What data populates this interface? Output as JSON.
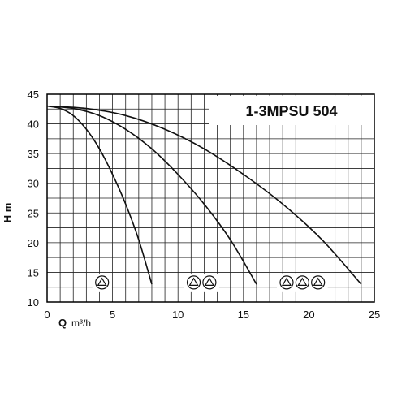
{
  "chart_data": {
    "type": "line",
    "title": "1-3MPSU 504",
    "xlabel": "Q",
    "xunit": "m³/h",
    "ylabel": "H m",
    "xlim": [
      0,
      25
    ],
    "ylim": [
      10,
      45
    ],
    "xticks": [
      0,
      5,
      10,
      15,
      20,
      25
    ],
    "yticks": [
      10,
      15,
      20,
      25,
      30,
      35,
      40,
      45
    ],
    "grid": true,
    "series": [
      {
        "pumps": 1,
        "icon": "pump-symbol-icon",
        "x": [
          0,
          1,
          2,
          3,
          4,
          5,
          6,
          7,
          8
        ],
        "y": [
          43,
          42.6,
          41.4,
          39.1,
          35.8,
          31.5,
          26.5,
          20.5,
          13
        ]
      },
      {
        "pumps": 2,
        "icon": "pump-symbol-icon",
        "x": [
          0,
          2,
          4,
          6,
          8,
          10,
          12,
          14,
          16
        ],
        "y": [
          43,
          42.6,
          41.4,
          39.1,
          35.8,
          31.5,
          26.5,
          20.5,
          13
        ]
      },
      {
        "pumps": 3,
        "icon": "pump-symbol-icon",
        "x": [
          0,
          3,
          6,
          9,
          12,
          15,
          18,
          21,
          24
        ],
        "y": [
          43,
          42.6,
          41.4,
          39.1,
          35.8,
          31.5,
          26.5,
          20.5,
          13
        ]
      }
    ],
    "pump_markers": [
      {
        "count": 1,
        "x": [
          4.2
        ],
        "y": 13.3
      },
      {
        "count": 2,
        "x": [
          11.2,
          12.4
        ],
        "y": 13.3
      },
      {
        "count": 3,
        "x": [
          18.3,
          19.5,
          20.7
        ],
        "y": 13.3
      }
    ]
  }
}
